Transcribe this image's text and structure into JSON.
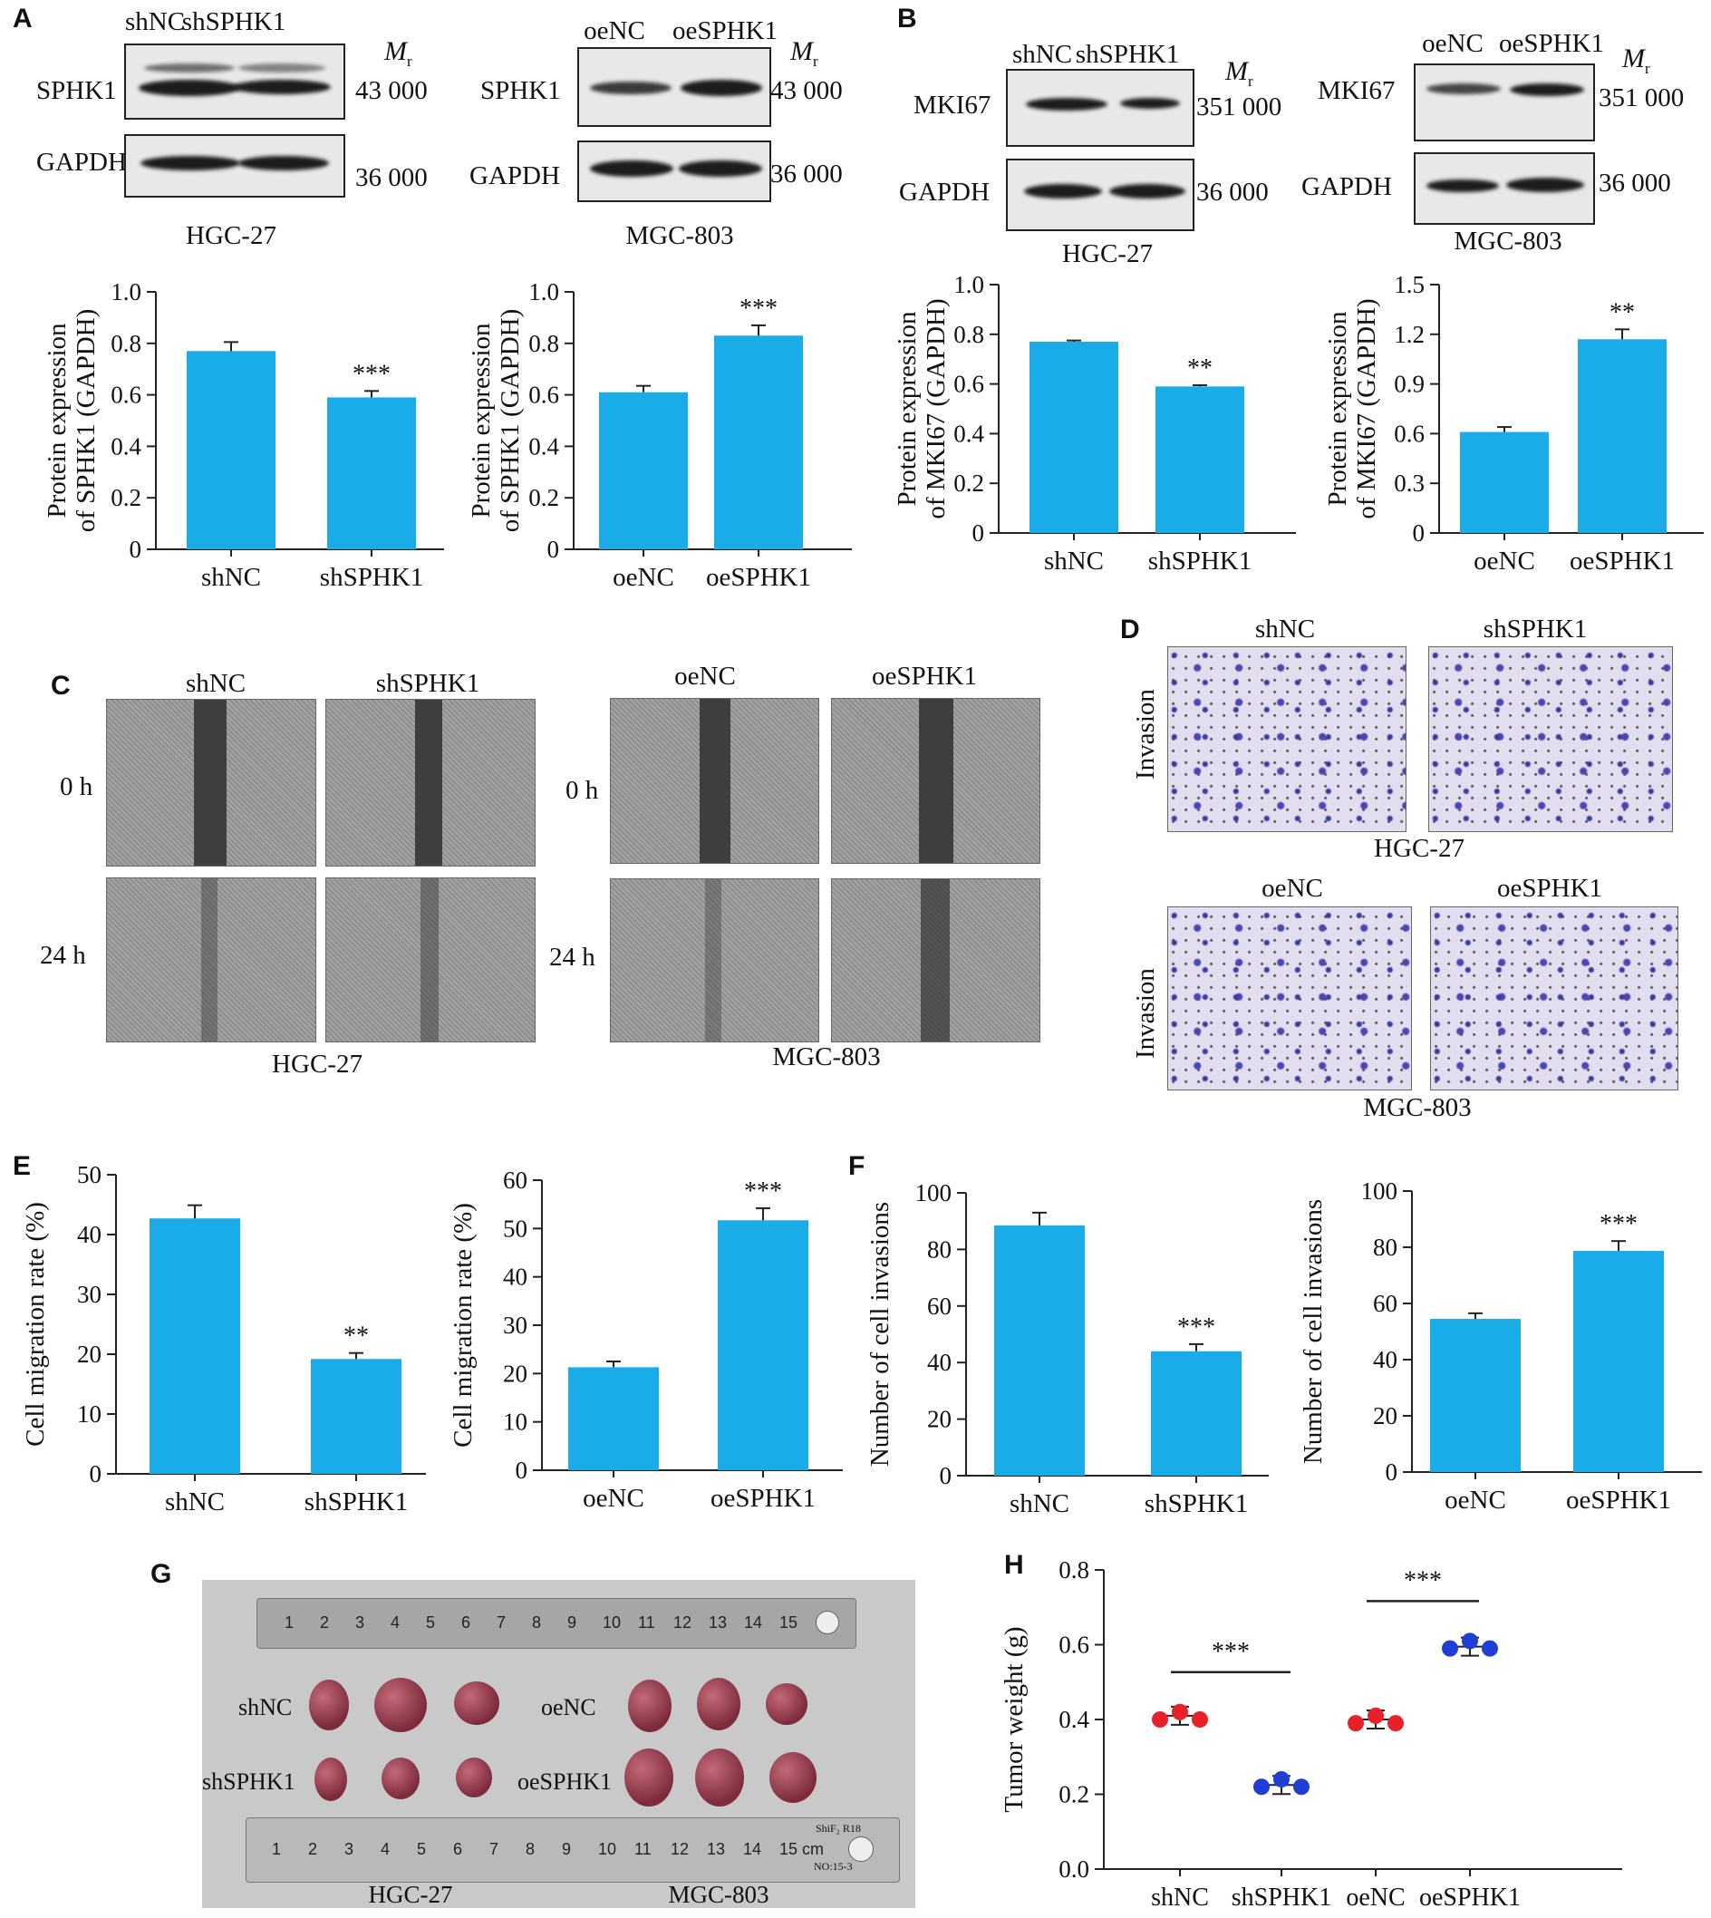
{
  "panels": {
    "A": {
      "label": "A",
      "blot_left": {
        "cols": [
          "shNC",
          "shSPHK1"
        ],
        "rows": [
          "SPHK1",
          "GAPDH"
        ],
        "mr": [
          "43 000",
          "36 000"
        ],
        "cell": "HGC-27"
      },
      "blot_right": {
        "cols": [
          "oeNC",
          "oeSPHK1"
        ],
        "rows": [
          "SPHK1",
          "GAPDH"
        ],
        "mr": [
          "43 000",
          "36 000"
        ],
        "cell": "MGC-803"
      }
    },
    "B": {
      "label": "B",
      "blot_left": {
        "cols": [
          "shNC",
          "shSPHK1"
        ],
        "rows": [
          "MKI67",
          "GAPDH"
        ],
        "mr": [
          "351 000",
          "36 000"
        ],
        "cell": "HGC-27"
      },
      "blot_right": {
        "cols": [
          "oeNC",
          "oeSPHK1"
        ],
        "rows": [
          "MKI67",
          "GAPDH"
        ],
        "mr": [
          "351 000",
          "36 000"
        ],
        "cell": "MGC-803"
      }
    },
    "C": {
      "label": "C",
      "cols_left": [
        "shNC",
        "shSPHK1"
      ],
      "cols_right": [
        "oeNC",
        "oeSPHK1"
      ],
      "rows": [
        "0 h",
        "24 h"
      ],
      "cell_left": "HGC-27",
      "cell_right": "MGC-803"
    },
    "D": {
      "label": "D",
      "row_label": "Invasion",
      "top": {
        "cols": [
          "shNC",
          "shSPHK1"
        ],
        "cell": "HGC-27"
      },
      "bottom": {
        "cols": [
          "oeNC",
          "oeSPHK1"
        ],
        "cell": "MGC-803"
      }
    },
    "E": {
      "label": "E"
    },
    "F": {
      "label": "F"
    },
    "G": {
      "label": "G",
      "row1_left": "shNC",
      "row1_right": "oeNC",
      "row2_left": "shSPHK1",
      "row2_right": "oeSPHK1",
      "ruler_top_ticks": [
        "1",
        "2",
        "3",
        "4",
        "5",
        "6",
        "7",
        "8",
        "9",
        "10",
        "11",
        "12",
        "13",
        "14",
        "15"
      ],
      "ruler_bottom_ticks": [
        "1",
        "2",
        "3",
        "4",
        "5",
        "6",
        "7",
        "8",
        "9",
        "10",
        "11",
        "12",
        "13",
        "14",
        "15 cm"
      ],
      "ruler_bottom_mark1": "ShiF₂ R18",
      "ruler_bottom_mark2": "NO:15-3",
      "cell_left": "HGC-27",
      "cell_right": "MGC-803"
    },
    "H": {
      "label": "H"
    }
  },
  "colors": {
    "bar": "#1aabe9",
    "red_group": "#e8202a",
    "blue_group": "#1f3fd4"
  },
  "mr_symbol": "M",
  "mr_sub": "r",
  "chart_data": [
    {
      "id": "A1",
      "type": "bar",
      "categories": [
        "shNC",
        "shSPHK1"
      ],
      "values": [
        0.77,
        0.59
      ],
      "errors": [
        0.035,
        0.025
      ],
      "significance": [
        "",
        "***"
      ],
      "ylabel": [
        "Protein expression",
        "of SPHK1 (GAPDH)"
      ],
      "ylim": [
        0,
        1.0
      ],
      "yticks": [
        "0",
        "0.2",
        "0.4",
        "0.6",
        "0.8",
        "1.0"
      ]
    },
    {
      "id": "A2",
      "type": "bar",
      "categories": [
        "oeNC",
        "oeSPHK1"
      ],
      "values": [
        0.61,
        0.83
      ],
      "errors": [
        0.025,
        0.04
      ],
      "significance": [
        "",
        "***"
      ],
      "ylabel": [
        "Protein expression",
        "of SPHK1 (GAPDH)"
      ],
      "ylim": [
        0,
        1.0
      ],
      "yticks": [
        "0",
        "0.2",
        "0.4",
        "0.6",
        "0.8",
        "1.0"
      ]
    },
    {
      "id": "B1",
      "type": "bar",
      "categories": [
        "shNC",
        "shSPHK1"
      ],
      "values": [
        0.77,
        0.59
      ],
      "errors": [
        0.005,
        0.005
      ],
      "significance": [
        "",
        "**"
      ],
      "ylabel": [
        "Protein expression",
        "of MKI67 (GAPDH)"
      ],
      "ylim": [
        0,
        1.0
      ],
      "yticks": [
        "0",
        "0.2",
        "0.4",
        "0.6",
        "0.8",
        "1.0"
      ]
    },
    {
      "id": "B2",
      "type": "bar",
      "categories": [
        "oeNC",
        "oeSPHK1"
      ],
      "values": [
        0.61,
        1.17
      ],
      "errors": [
        0.03,
        0.06
      ],
      "significance": [
        "",
        "**"
      ],
      "ylabel": [
        "Protein expression",
        "of MKI67 (GAPDH)"
      ],
      "ylim": [
        0,
        1.5
      ],
      "yticks": [
        "0",
        "0.3",
        "0.6",
        "0.9",
        "1.2",
        "1.5"
      ]
    },
    {
      "id": "E1",
      "type": "bar",
      "categories": [
        "shNC",
        "shSPHK1"
      ],
      "values": [
        42.7,
        19.2
      ],
      "errors": [
        2.2,
        1.0
      ],
      "significance": [
        "",
        "**"
      ],
      "ylabel": [
        "Cell migration rate (%)"
      ],
      "ylim": [
        0,
        50
      ],
      "yticks": [
        "0",
        "10",
        "20",
        "30",
        "40",
        "50"
      ]
    },
    {
      "id": "E2",
      "type": "bar",
      "categories": [
        "oeNC",
        "oeSPHK1"
      ],
      "values": [
        21.3,
        51.7
      ],
      "errors": [
        1.2,
        2.5
      ],
      "significance": [
        "",
        "***"
      ],
      "ylabel": [
        "Cell migration rate (%)"
      ],
      "ylim": [
        0,
        60
      ],
      "yticks": [
        "0",
        "10",
        "20",
        "30",
        "40",
        "50",
        "60"
      ]
    },
    {
      "id": "F1",
      "type": "bar",
      "categories": [
        "shNC",
        "shSPHK1"
      ],
      "values": [
        88.5,
        44.0
      ],
      "errors": [
        4.5,
        2.5
      ],
      "significance": [
        "",
        "***"
      ],
      "ylabel": [
        "Number of cell invasions"
      ],
      "ylim": [
        0,
        100
      ],
      "yticks": [
        "0",
        "20",
        "40",
        "60",
        "80",
        "100"
      ]
    },
    {
      "id": "F2",
      "type": "bar",
      "categories": [
        "oeNC",
        "oeSPHK1"
      ],
      "values": [
        54.5,
        78.7
      ],
      "errors": [
        2.0,
        3.5
      ],
      "significance": [
        "",
        "***"
      ],
      "ylabel": [
        "Number of cell invasions"
      ],
      "ylim": [
        0,
        100
      ],
      "yticks": [
        "0",
        "20",
        "40",
        "60",
        "80",
        "100"
      ]
    },
    {
      "id": "H",
      "type": "scatter",
      "categories": [
        "shNC",
        "shSPHK1",
        "oeNC",
        "oeSPHK1"
      ],
      "points": [
        [
          0.4,
          0.42,
          0.4
        ],
        [
          0.22,
          0.24,
          0.22
        ],
        [
          0.39,
          0.41,
          0.39
        ],
        [
          0.59,
          0.61,
          0.59
        ]
      ],
      "means": [
        0.41,
        0.225,
        0.4,
        0.595
      ],
      "groups_color": [
        "red",
        "blue",
        "red",
        "blue"
      ],
      "significance": [
        {
          "pair": [
            0,
            1
          ],
          "label": "***"
        },
        {
          "pair": [
            2,
            3
          ],
          "label": "***"
        }
      ],
      "ylabel": [
        "Tumor weight (g)"
      ],
      "ylim": [
        0,
        0.8
      ],
      "yticks": [
        "0.0",
        "0.2",
        "0.4",
        "0.6",
        "0.8"
      ]
    }
  ]
}
